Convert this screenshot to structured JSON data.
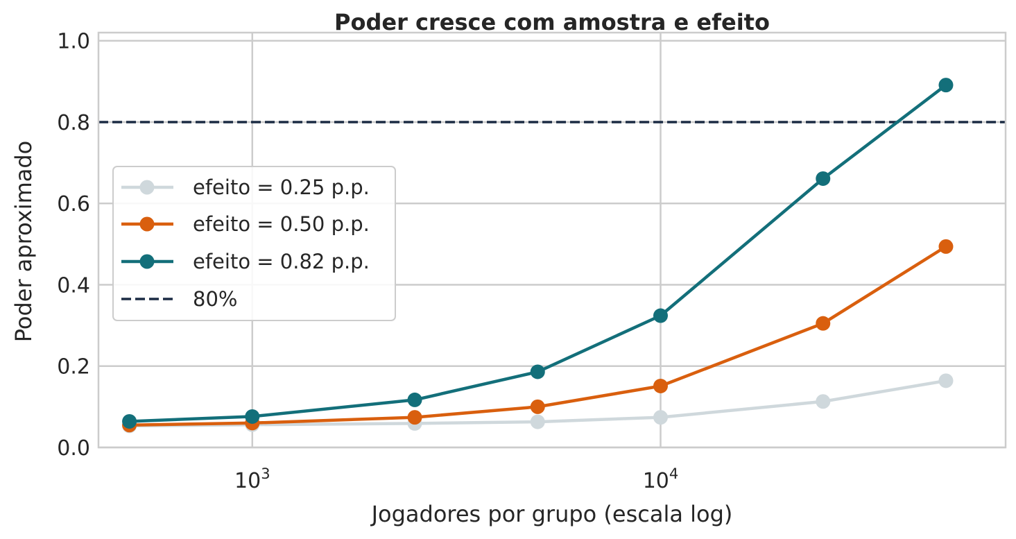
{
  "chart_data": {
    "type": "line",
    "title": "Poder cresce com amostra e efeito",
    "xlabel": "Jogadores por grupo (escala log)",
    "ylabel": "Poder aproximado",
    "xscale": "log",
    "xlim": [
      420,
      70000
    ],
    "ylim": [
      0.0,
      1.02
    ],
    "xticks": [
      {
        "value": 1000,
        "base": "10",
        "exp": "3"
      },
      {
        "value": 10000,
        "base": "10",
        "exp": "4"
      }
    ],
    "yticks": [
      {
        "value": 0.0,
        "label": "0.0"
      },
      {
        "value": 0.2,
        "label": "0.2"
      },
      {
        "value": 0.4,
        "label": "0.4"
      },
      {
        "value": 0.6,
        "label": "0.6"
      },
      {
        "value": 0.8,
        "label": "0.8"
      },
      {
        "value": 1.0,
        "label": "1.0"
      }
    ],
    "grid": true,
    "legend_position": "center-left",
    "x": [
      500,
      1000,
      2500,
      5000,
      10000,
      25000,
      50000
    ],
    "series": [
      {
        "name": "efeito = 0.25 p.p.",
        "color": "#cfd8dc",
        "values": [
          0.053,
          0.056,
          0.059,
          0.063,
          0.074,
          0.113,
          0.164
        ]
      },
      {
        "name": "efeito = 0.50 p.p.",
        "color": "#d95f0e",
        "values": [
          0.055,
          0.06,
          0.074,
          0.1,
          0.151,
          0.305,
          0.494
        ]
      },
      {
        "name": "efeito = 0.82 p.p.",
        "color": "#136f7a",
        "values": [
          0.064,
          0.076,
          0.117,
          0.186,
          0.324,
          0.661,
          0.891
        ]
      }
    ],
    "reference_line": {
      "name": "80%",
      "value": 0.8,
      "color": "#1b2b44",
      "style": "dashed"
    }
  }
}
